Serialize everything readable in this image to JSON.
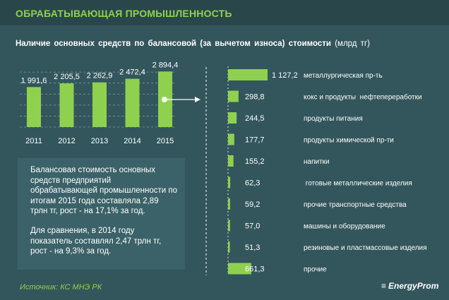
{
  "header": {
    "title": "ОБРАБАТЫВАЮЩАЯ ПРОМЫШЛЕННОСТЬ"
  },
  "subtitle": {
    "text": "Наличие основных средств по балансовой (за вычетом износа) стоимости",
    "unit": "(млрд тг)"
  },
  "note": {
    "p1": "Балансовая стоимость основных средств предприятий обрабатывающей промышленности по итогам 2015 года составляла 2,89 трлн тг, рост - на 17,1% за год.",
    "p2": "Для сравнения, в 2014 году показатель составлял 2,47 трлн тг, рост - на 9,3% за год."
  },
  "source": "Источник: КС МНЭ РК",
  "logo": "EnergyProm",
  "colors": {
    "accent": "#8fd14f",
    "background": "#33565c"
  },
  "chart_data": [
    {
      "type": "bar",
      "categories": [
        "2011",
        "2012",
        "2013",
        "2014",
        "2015"
      ],
      "values": [
        1991.6,
        2205.5,
        2262.9,
        2472.4,
        2894.4
      ],
      "value_labels": [
        "1 991,6",
        "2 205,5",
        "2 262,9",
        "2 472,4",
        "2 894,4"
      ],
      "title": "",
      "xlabel": "",
      "ylabel": "",
      "grid": true
    },
    {
      "type": "bar",
      "orientation": "horizontal",
      "categories": [
        "металлургическая пр-ть",
        "кокс и продукты  нефтепереработки",
        "продукты питания",
        "продукты химической пр-ти",
        "напитки",
        " готовые металлические изделия",
        "прочие транспортные средства",
        "машины и оборудование",
        "резиновые и пластмассовые изделия",
        "прочие"
      ],
      "values": [
        1127.2,
        298.8,
        244.5,
        177.7,
        155.2,
        62.3,
        59.2,
        57.0,
        51.3,
        661.3
      ],
      "value_labels": [
        "1 127,2",
        "298,8",
        "244,5",
        "177,7",
        "155,2",
        "62,3",
        "59,2",
        "57,0",
        "51,3",
        "661,3"
      ],
      "title": "",
      "xlabel": "",
      "ylabel": ""
    }
  ]
}
